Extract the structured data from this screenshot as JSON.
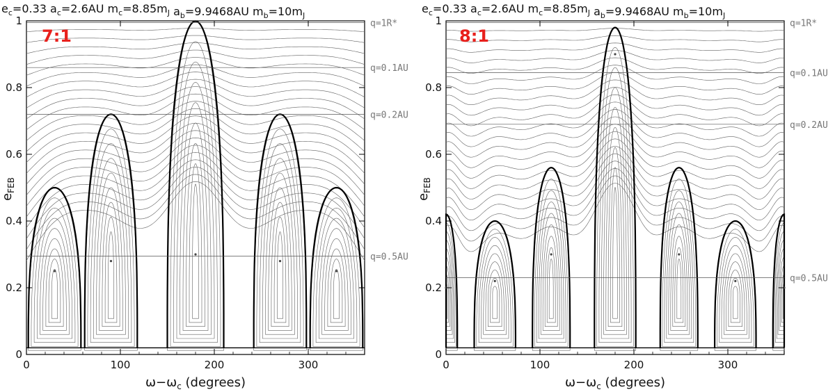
{
  "chart_data": [
    {
      "type": "line",
      "title": "e_c=0.33  a_c=2.6AU  m_c=8.85m_J  a_b=9.9468AU  m_b=10m_J",
      "title_parts": [
        {
          "sym": "e",
          "sub": "c",
          "val": "=0.33"
        },
        {
          "sym": "a",
          "sub": "c",
          "val": "=2.6AU"
        },
        {
          "sym": "m",
          "sub": "c",
          "val": "=8.85m",
          "sub2": "J"
        },
        {
          "sym": "a",
          "sub": "b",
          "val": "=9.9468AU"
        },
        {
          "sym": "m",
          "sub": "b",
          "val": "=10m",
          "sub2": "J"
        }
      ],
      "resonance": "7:1",
      "xlabel": "ω−ω",
      "xlabel_sub": "c",
      "xlabel_tail": " (degrees)",
      "ylabel": "e",
      "ylabel_sub": "FEB",
      "xlim": [
        0,
        360
      ],
      "ylim": [
        0,
        1
      ],
      "x_ticks": [
        0,
        100,
        200,
        300
      ],
      "y_ticks": [
        0,
        0.2,
        0.4,
        0.6,
        0.8,
        1
      ],
      "y_tick_labels": [
        "0",
        "0.2",
        "0.4",
        "0.6",
        "0.8",
        "1"
      ],
      "pericenter_lines": [
        {
          "label": "q=1R*",
          "e": 0.995
        },
        {
          "label": "q=0.1AU",
          "e": 0.86
        },
        {
          "label": "q=0.2AU",
          "e": 0.72
        },
        {
          "label": "q=0.5AU",
          "e": 0.295
        }
      ],
      "centers": [
        {
          "x": 30,
          "e": 0.25,
          "type": "libration"
        },
        {
          "x": 90,
          "e": 0.28,
          "type": "libration"
        },
        {
          "x": 180,
          "e": 0.3,
          "type": "libration"
        },
        {
          "x": 270,
          "e": 0.28,
          "type": "libration"
        },
        {
          "x": 330,
          "e": 0.25,
          "type": "libration"
        }
      ],
      "separatrices": [
        {
          "center": 30,
          "half_width": 28,
          "peak": 0.5
        },
        {
          "center": 90,
          "half_width": 28,
          "peak": 0.72
        },
        {
          "center": 180,
          "half_width": 30,
          "peak": 1.0
        },
        {
          "center": 270,
          "half_width": 28,
          "peak": 0.72
        },
        {
          "center": 330,
          "half_width": 28,
          "peak": 0.5
        }
      ]
    },
    {
      "type": "line",
      "title": "e_c=0.33  a_c=2.6AU  m_c=8.85m_J  a_b=9.9468AU  m_b=10m_J",
      "title_parts": [
        {
          "sym": "e",
          "sub": "c",
          "val": "=0.33"
        },
        {
          "sym": "a",
          "sub": "c",
          "val": "=2.6AU"
        },
        {
          "sym": "m",
          "sub": "c",
          "val": "=8.85m",
          "sub2": "J"
        },
        {
          "sym": "a",
          "sub": "b",
          "val": "=9.9468AU"
        },
        {
          "sym": "m",
          "sub": "b",
          "val": "=10m",
          "sub2": "J"
        }
      ],
      "resonance": "8:1",
      "xlabel": "ω−ω",
      "xlabel_sub": "c",
      "xlabel_tail": " (degrees)",
      "ylabel": "e",
      "ylabel_sub": "FEB",
      "xlim": [
        0,
        360
      ],
      "ylim": [
        0,
        1
      ],
      "x_ticks": [
        0,
        100,
        200,
        300
      ],
      "y_ticks": [
        0,
        0.2,
        0.4,
        0.6,
        0.8,
        1
      ],
      "y_tick_labels": [
        "0",
        "0.2",
        "0.4",
        "0.6",
        "0.8",
        "1"
      ],
      "pericenter_lines": [
        {
          "label": "q=1R*",
          "e": 0.995
        },
        {
          "label": "q=0.1AU",
          "e": 0.845
        },
        {
          "label": "q=0.2AU",
          "e": 0.69
        },
        {
          "label": "q=0.5AU",
          "e": 0.23
        }
      ],
      "centers": [
        {
          "x": 0,
          "e": 0.2,
          "type": "libration"
        },
        {
          "x": 52,
          "e": 0.22,
          "type": "libration"
        },
        {
          "x": 112,
          "e": 0.3,
          "type": "libration"
        },
        {
          "x": 180,
          "e": 0.9,
          "type": "libration"
        },
        {
          "x": 248,
          "e": 0.3,
          "type": "libration"
        },
        {
          "x": 308,
          "e": 0.22,
          "type": "libration"
        },
        {
          "x": 360,
          "e": 0.2,
          "type": "libration"
        }
      ],
      "separatrices": [
        {
          "center": 0,
          "half_width": 12,
          "peak": 0.42
        },
        {
          "center": 52,
          "half_width": 22,
          "peak": 0.4
        },
        {
          "center": 112,
          "half_width": 20,
          "peak": 0.56
        },
        {
          "center": 180,
          "half_width": 22,
          "peak": 0.98
        },
        {
          "center": 248,
          "half_width": 20,
          "peak": 0.56
        },
        {
          "center": 308,
          "half_width": 22,
          "peak": 0.4
        },
        {
          "center": 360,
          "half_width": 12,
          "peak": 0.42
        }
      ]
    }
  ]
}
